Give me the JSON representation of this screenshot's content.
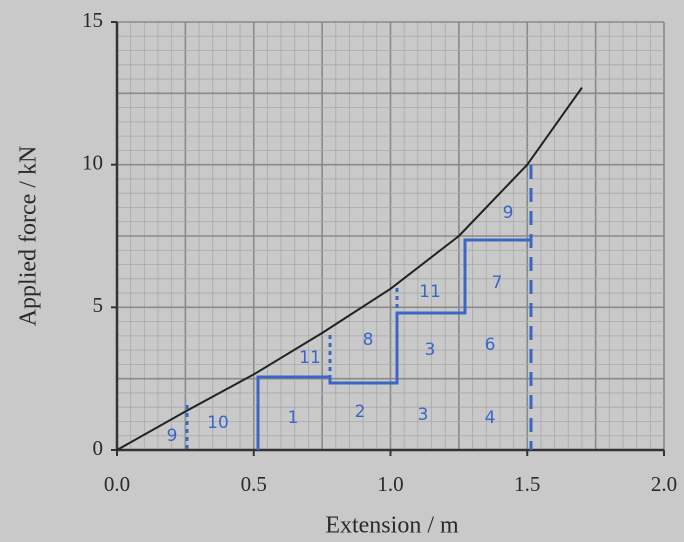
{
  "chart_data": {
    "type": "line",
    "x_label": "Extension / m",
    "y_label": "Applied force / kN",
    "xlim": [
      0,
      2
    ],
    "ylim": [
      0,
      15
    ],
    "xticks": [
      {
        "value": 0,
        "label": "0.0"
      },
      0.5,
      {
        "value": 1,
        "label": "1.0"
      },
      1.5,
      {
        "value": 2,
        "label": "2.0"
      }
    ],
    "yticks": [
      0,
      5,
      10,
      15
    ],
    "grid": true,
    "series": [
      {
        "color": "#222222",
        "x": [
          0,
          0.25,
          0.5,
          0.75,
          1.0,
          1.25,
          1.5,
          1.7
        ],
        "values": [
          0,
          1.35,
          2.65,
          4.1,
          5.65,
          7.5,
          10,
          12.7
        ]
      }
    ],
    "annotations": [
      "9",
      "10",
      "1",
      "2",
      "3",
      "4",
      "11",
      "8",
      "3",
      "6",
      "11",
      "7",
      "9"
    ]
  }
}
